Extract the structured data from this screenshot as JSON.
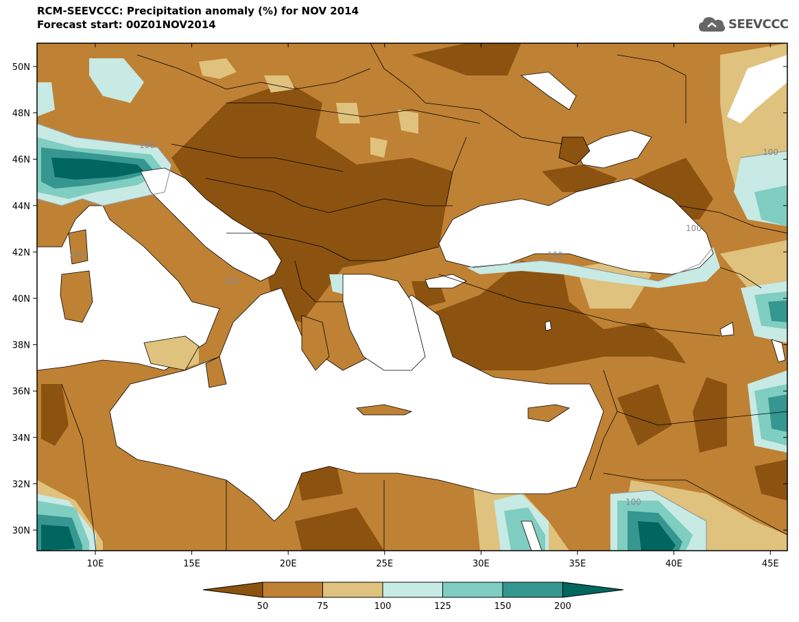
{
  "title": {
    "line1": "RCM-SEEVCCC: Precipitation anomaly (%) for NOV 2014",
    "line2": "Forecast start: 00Z01NOV2014"
  },
  "logo": {
    "text": "SEEVCCC",
    "icon": "cloud-icon"
  },
  "map": {
    "lon_range": [
      7,
      46
    ],
    "lat_range": [
      29,
      51
    ],
    "lat_ticks": [
      "50N",
      "48N",
      "46N",
      "44N",
      "42N",
      "40N",
      "38N",
      "36N",
      "34N",
      "32N",
      "30N"
    ],
    "lon_ticks": [
      "10E",
      "15E",
      "20E",
      "25E",
      "30E",
      "35E",
      "40E",
      "45E"
    ],
    "contour_labels": [
      "100",
      "100",
      "100",
      "100",
      "100",
      "100",
      "100"
    ]
  },
  "legend": {
    "labels": [
      "50",
      "75",
      "100",
      "125",
      "150",
      "200"
    ],
    "colors": [
      "#8B5210",
      "#BF8134",
      "#DFC27D",
      "#C7EAE5",
      "#80CDC1",
      "#35978F",
      "#01665E"
    ]
  },
  "colors": {
    "land_base": "#BF8134",
    "sea": "#ffffff"
  }
}
